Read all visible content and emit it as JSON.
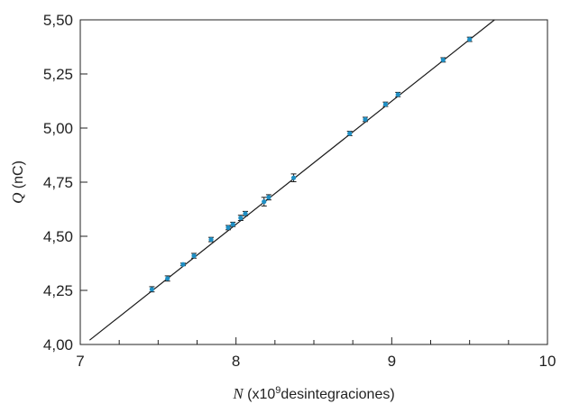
{
  "chart_data": {
    "type": "scatter",
    "title": "",
    "xlabel": {
      "var": "N",
      "pre": " (x10",
      "sup": "9",
      "post": "desintegraciones)"
    },
    "ylabel": {
      "var": "Q",
      "post": " (nC)"
    },
    "xlim": [
      7,
      10
    ],
    "ylim": [
      4.0,
      5.5
    ],
    "xticks": [
      7,
      8,
      9,
      10
    ],
    "xtick_labels": [
      "7",
      "8",
      "9",
      "10"
    ],
    "xminor_step": 0.25,
    "yticks": [
      4.0,
      4.25,
      4.5,
      4.75,
      5.0,
      5.25,
      5.5
    ],
    "ytick_labels": [
      "4,00",
      "4,25",
      "4,50",
      "4,75",
      "5,00",
      "5,25",
      "5,50"
    ],
    "grid": false,
    "points": {
      "marker_color": "#1f8fc4",
      "errorbar_color": "#1a1a1a",
      "x": [
        7.46,
        7.56,
        7.66,
        7.73,
        7.84,
        7.95,
        7.98,
        8.03,
        8.06,
        8.18,
        8.21,
        8.37,
        8.73,
        8.83,
        8.96,
        9.04,
        9.33,
        9.5
      ],
      "y": [
        4.255,
        4.305,
        4.37,
        4.41,
        4.485,
        4.54,
        4.555,
        4.585,
        4.605,
        4.66,
        4.68,
        4.77,
        4.975,
        5.04,
        5.11,
        5.155,
        5.315,
        5.41
      ],
      "yerr": [
        0.012,
        0.012,
        0.006,
        0.011,
        0.01,
        0.01,
        0.01,
        0.012,
        0.01,
        0.02,
        0.012,
        0.018,
        0.01,
        0.01,
        0.01,
        0.01,
        0.01,
        0.01
      ]
    },
    "fit_line": {
      "color": "#1a1a1a",
      "x": [
        7.06,
        9.66
      ],
      "y": [
        4.02,
        5.5
      ]
    }
  }
}
